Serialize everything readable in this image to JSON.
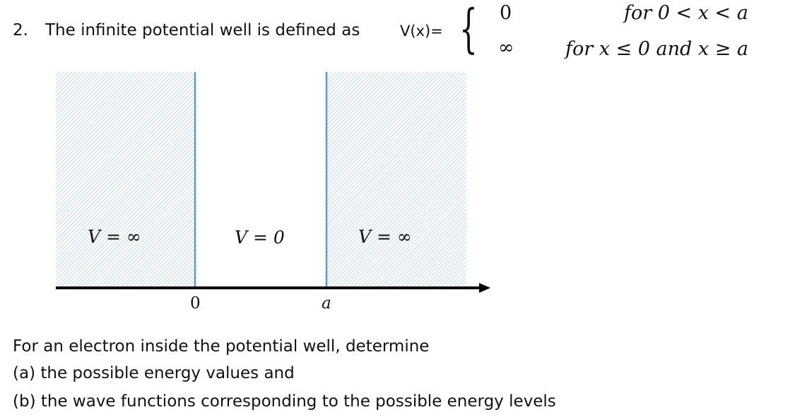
{
  "question": {
    "number": "2.",
    "intro": "The infinite potential well is defined as",
    "vx_label": "V(x)=",
    "brace": "{",
    "cases": [
      {
        "value": "0",
        "condition": "for 0 < x < a"
      },
      {
        "value": "∞",
        "condition": "for x ≤ 0 and x  ≥ a"
      }
    ]
  },
  "diagram": {
    "region_left_label": "V = ∞",
    "region_middle_label": "V = 0",
    "region_right_label": "V = ∞",
    "tick_zero": "0",
    "tick_a": "a",
    "colors": {
      "hatch": "#9ec3db",
      "wall": "#5b9bd5",
      "axis": "#000000"
    }
  },
  "body": {
    "line1": "For an electron inside the potential well, determine",
    "line2": "(a) the possible energy values and",
    "line3": "(b) the wave functions corresponding to the possible energy levels"
  }
}
